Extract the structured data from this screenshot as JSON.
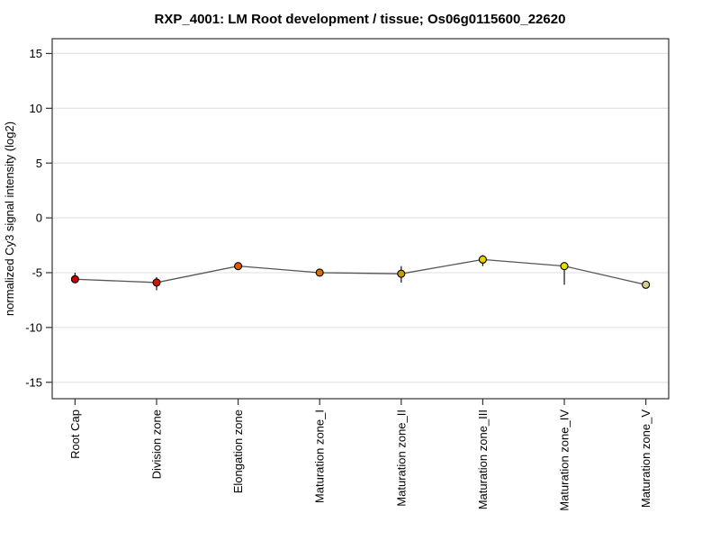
{
  "page": {
    "background": "#ffffff"
  },
  "chart_data": {
    "type": "line",
    "title": "RXP_4001: LM Root development / tissue; Os06g0115600_22620",
    "ylabel": "normalized Cy3 signal intensity (log2)",
    "xlabel": "",
    "categories": [
      "Root Cap",
      "Division zone",
      "Elongation zone",
      "Maturation zone_I",
      "Maturation zone_II",
      "Maturation zone_III",
      "Maturation zone_IV",
      "Maturation zone_V"
    ],
    "values": [
      -5.6,
      -5.9,
      -4.4,
      -5.0,
      -5.1,
      -3.8,
      -4.4,
      -6.1
    ],
    "error_bars": [
      [
        -5.8,
        -5.0
      ],
      [
        -6.6,
        -5.4
      ],
      [
        -4.5,
        -4.3
      ],
      [
        -5.3,
        -4.8
      ],
      [
        -5.9,
        -4.4
      ],
      [
        -4.4,
        -3.4
      ],
      [
        -6.1,
        -4.2
      ],
      [
        -6.15,
        -6.05
      ]
    ],
    "point_colors": [
      "#c80000",
      "#d21900",
      "#e05a00",
      "#d27000",
      "#c89b00",
      "#e6d200",
      "#e8e000",
      "#d2d28c"
    ],
    "yticks": [
      -15,
      -10,
      -5,
      0,
      5,
      10,
      15
    ],
    "ylim": [
      -16.5,
      16.35
    ],
    "grid": true,
    "legend": "none",
    "line_color": "#555555",
    "error_bar_color": "#111111",
    "frame_color": "#333333",
    "gridline_color": "#e5e5e5",
    "point_outline_color": "#000000"
  }
}
